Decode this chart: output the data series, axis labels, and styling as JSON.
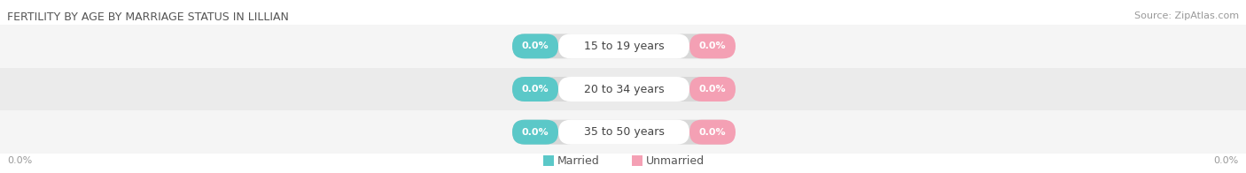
{
  "title": "FERTILITY BY AGE BY MARRIAGE STATUS IN LILLIAN",
  "source": "Source: ZipAtlas.com",
  "age_groups": [
    "15 to 19 years",
    "20 to 34 years",
    "35 to 50 years"
  ],
  "married_values": [
    0.0,
    0.0,
    0.0
  ],
  "unmarried_values": [
    0.0,
    0.0,
    0.0
  ],
  "married_color": "#5bc8c8",
  "unmarried_color": "#f4a0b4",
  "title_fontsize": 9,
  "source_fontsize": 8,
  "value_fontsize": 8,
  "age_fontsize": 9,
  "legend_fontsize": 9,
  "left_label": "0.0%",
  "right_label": "0.0%",
  "background_color": "#ffffff",
  "row_even_color": "#f5f5f5",
  "row_odd_color": "#ebebeb",
  "pill_bg_color": "#d8d8d8",
  "age_label_bg": "#ffffff"
}
